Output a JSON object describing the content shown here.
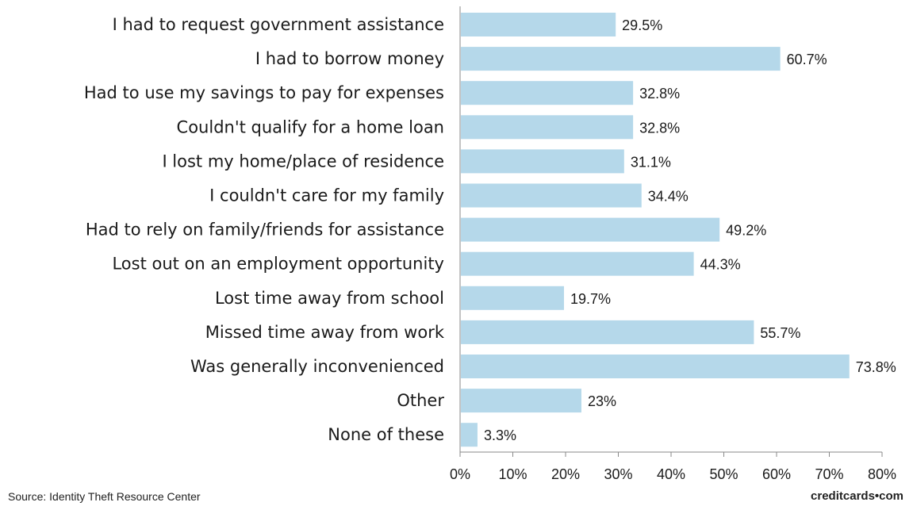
{
  "chart_data": {
    "type": "bar",
    "orientation": "horizontal",
    "categories": [
      "I had to request government assistance",
      "I had to borrow money",
      "Had to use my savings to pay for expenses",
      "Couldn't qualify for a home loan",
      "I lost my home/place of residence",
      "I couldn't care for my family",
      "Had to rely on family/friends for assistance",
      "Lost out on an employment opportunity",
      "Lost time away from school",
      "Missed time away from work",
      "Was generally inconvenienced",
      "Other",
      "None of these"
    ],
    "values": [
      29.5,
      60.7,
      32.8,
      32.8,
      31.1,
      34.4,
      49.2,
      44.3,
      19.7,
      55.7,
      73.8,
      23,
      3.3
    ],
    "value_labels": [
      "29.5%",
      "60.7%",
      "32.8%",
      "32.8%",
      "31.1%",
      "34.4%",
      "49.2%",
      "44.3%",
      "19.7%",
      "55.7%",
      "73.8%",
      "23%",
      "3.3%"
    ],
    "xlim": [
      0,
      80
    ],
    "xticks": [
      "0%",
      "10%",
      "20%",
      "30%",
      "40%",
      "50%",
      "60%",
      "70%",
      "80%"
    ],
    "grid": false,
    "bar_color": "#b5d8ea"
  },
  "footer": {
    "source": "Source: Identity Theft Resource Center",
    "brand": "creditcards•com"
  }
}
